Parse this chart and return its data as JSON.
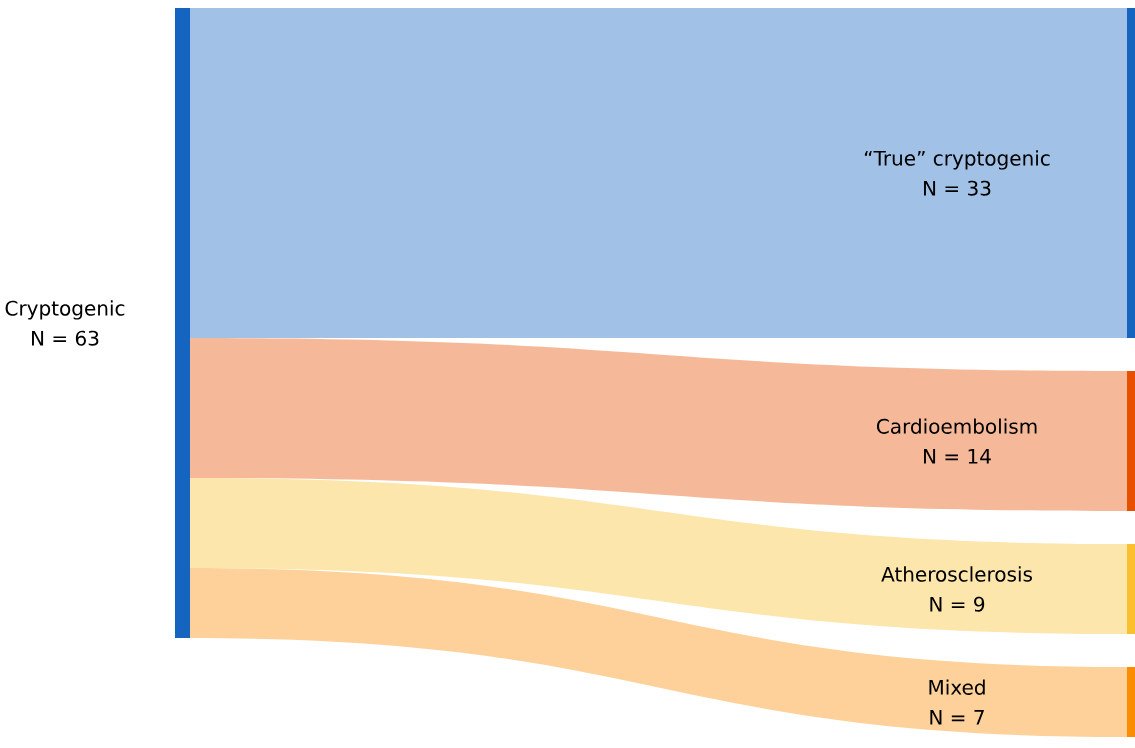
{
  "chart_data": {
    "type": "other",
    "categories": [
      "“True” cryptogenic",
      "Cardioembolism",
      "Atherosclerosis",
      "Mixed"
    ],
    "values": [
      33,
      14,
      9,
      7
    ],
    "value_labels": [
      "N = 33",
      "N = 14",
      "N = 9",
      "N = 7"
    ],
    "colors": [
      "#a1c1e6",
      "#f5b999",
      "#fde6ab",
      "#fdd199"
    ],
    "annotations": [
      "Cryptogenic",
      "N = 63"
    ]
  }
}
